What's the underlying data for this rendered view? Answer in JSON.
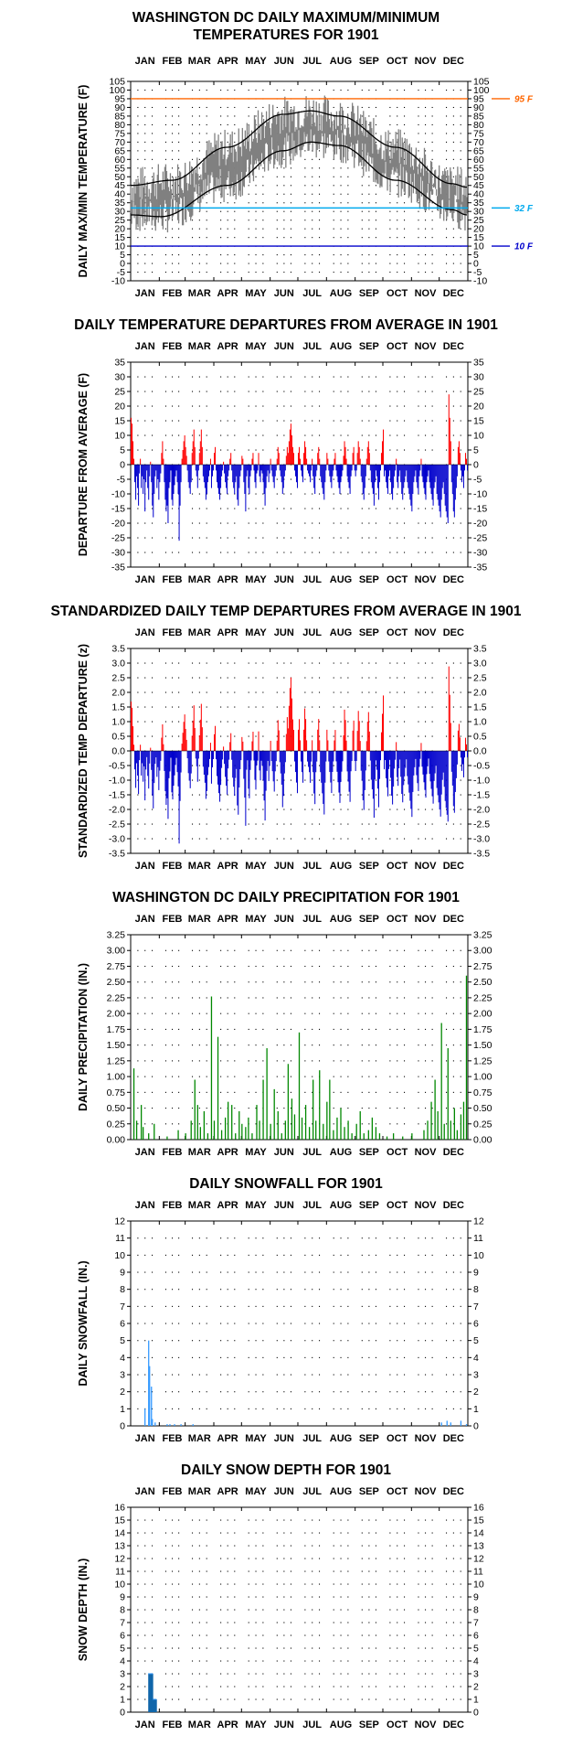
{
  "months": [
    "JAN",
    "FEB",
    "MAR",
    "APR",
    "MAY",
    "JUN",
    "JUL",
    "AUG",
    "SEP",
    "OCT",
    "NOV",
    "DEC"
  ],
  "chart_data": [
    {
      "type": "line",
      "title": "WASHINGTON DC DAILY MAXIMUM/MINIMUM",
      "subtitle": "TEMPERATURES FOR 1901",
      "ylabel": "DAILY MAX/MIN TEMPERATURE (F)",
      "xlabel": "",
      "ylim": [
        -10,
        105
      ],
      "yticks": [
        -10,
        -5,
        0,
        5,
        10,
        15,
        20,
        25,
        30,
        35,
        40,
        45,
        50,
        55,
        60,
        65,
        70,
        75,
        80,
        85,
        90,
        95,
        100,
        105
      ],
      "ref_lines": [
        {
          "value": 95,
          "label": "95 F",
          "color": "#ff6600"
        },
        {
          "value": 32,
          "label": "32 F",
          "color": "#00aaee"
        },
        {
          "value": 10,
          "label": "10 F",
          "color": "#0000cc"
        }
      ],
      "series": [],
      "normal_max_anchor": [
        [
          1,
          45
        ],
        [
          46,
          48
        ],
        [
          105,
          67
        ],
        [
          166,
          86
        ],
        [
          196,
          88
        ],
        [
          227,
          85
        ],
        [
          288,
          67
        ],
        [
          349,
          46
        ],
        [
          365,
          44
        ]
      ],
      "normal_min_anchor": [
        [
          1,
          28
        ],
        [
          34,
          27
        ],
        [
          105,
          45
        ],
        [
          166,
          65
        ],
        [
          196,
          70
        ],
        [
          227,
          68
        ],
        [
          288,
          48
        ],
        [
          349,
          31
        ],
        [
          365,
          28
        ]
      ],
      "daily_range_envelope": {
        "lows_start": 15,
        "highs_summer": 97,
        "max_daily_high": 99
      },
      "grid": "dotted"
    },
    {
      "type": "bar",
      "title": "DAILY TEMPERATURE DEPARTURES FROM AVERAGE IN 1901",
      "ylabel": "DEPARTURE FROM AVERAGE (F)",
      "xlabel": "",
      "ylim": [
        -35,
        35
      ],
      "yticks": [
        -35,
        -30,
        -25,
        -20,
        -15,
        -10,
        -5,
        0,
        5,
        10,
        15,
        20,
        25,
        30,
        35
      ],
      "positive_color": "#ff0000",
      "negative_color": "#0000cc",
      "values": [
        16,
        14,
        8,
        2,
        -6,
        -12,
        -4,
        -8,
        -14,
        -3,
        2,
        -8,
        -4,
        -10,
        -5,
        -16,
        -6,
        -2,
        -8,
        -12,
        -4,
        1,
        -6,
        -14,
        -18,
        -10,
        -4,
        -2,
        -8,
        -5,
        -12,
        -6,
        -3,
        4,
        8,
        2,
        -6,
        -12,
        -16,
        -14,
        -20,
        -8,
        -6,
        -2,
        -12,
        -14,
        -10,
        -7,
        -4,
        -2,
        -6,
        -10,
        -26,
        -14,
        -6,
        2,
        5,
        8,
        10,
        6,
        3,
        -2,
        -6,
        -8,
        -10,
        -6,
        4,
        8,
        12,
        6,
        -2,
        -4,
        -8,
        -2,
        4,
        8,
        12,
        6,
        -4,
        -6,
        -8,
        -12,
        -10,
        -6,
        -4,
        -2,
        2,
        -8,
        -4,
        -2,
        4,
        6,
        -2,
        -6,
        -8,
        -10,
        -12,
        -8,
        -4,
        -2,
        1,
        -3,
        -6,
        -8,
        -10,
        -4,
        -2,
        2,
        4,
        -2,
        -6,
        -8,
        -10,
        -6,
        -4,
        -12,
        -14,
        -8,
        -4,
        -2,
        3,
        2,
        -6,
        -10,
        -16,
        -4,
        -2,
        -8,
        -10,
        -4,
        -2,
        2,
        4,
        -2,
        -6,
        -8,
        -3,
        -2,
        4,
        -4,
        -6,
        -2,
        -3,
        -6,
        -10,
        -14,
        -8,
        -4,
        -2,
        -6,
        -3,
        2,
        -2,
        -4,
        -6,
        -8,
        -4,
        -2,
        2,
        6,
        4,
        -2,
        -4,
        -6,
        -10,
        -8,
        -4,
        -2,
        3,
        6,
        4,
        8,
        12,
        14,
        10,
        6,
        4,
        -2,
        -4,
        -6,
        -8,
        4,
        6,
        2,
        -2,
        -4,
        -6,
        4,
        8,
        6,
        2,
        -2,
        -3,
        -4,
        -6,
        -2,
        2,
        -4,
        -8,
        -10,
        -4,
        -2,
        4,
        6,
        2,
        -4,
        -6,
        -8,
        -10,
        -12,
        -6,
        -2,
        4,
        2,
        -2,
        -4,
        -6,
        -8,
        -4,
        -2,
        2,
        4,
        -2,
        -4,
        -6,
        -8,
        -10,
        -6,
        -4,
        -2,
        3,
        8,
        6,
        2,
        -4,
        -6,
        -8,
        -10,
        -4,
        -2,
        4,
        6,
        -2,
        -4,
        -2,
        4,
        8,
        6,
        2,
        -4,
        -6,
        -10,
        -12,
        -8,
        -4,
        2,
        6,
        8,
        4,
        -2,
        -6,
        -8,
        -10,
        -14,
        -6,
        -2,
        -4,
        -8,
        -12,
        -6,
        -2,
        4,
        8,
        12,
        -4,
        -2,
        -6,
        -8,
        -10,
        -4,
        -2,
        -6,
        -10,
        -12,
        -8,
        -4,
        -2,
        2,
        -6,
        -8,
        -4,
        -2,
        -6,
        -10,
        -12,
        -8,
        -6,
        -4,
        -2,
        -6,
        -8,
        -10,
        -12,
        -14,
        -16,
        -10,
        -6,
        -4,
        -2,
        -6,
        -8,
        -10,
        -4,
        -2,
        2,
        -4,
        -6,
        -8,
        -10,
        -12,
        -6,
        -4,
        -2,
        -6,
        -8,
        -10,
        -12,
        -14,
        -8,
        -6,
        -4,
        -10,
        -12,
        -14,
        -16,
        -18,
        -12,
        -8,
        -6,
        -10,
        -14,
        -16,
        -18,
        -20,
        24,
        16,
        8,
        -6,
        -10,
        -16,
        -18,
        -12,
        -8,
        -4,
        6,
        8,
        4,
        -2,
        -6,
        -4,
        -8,
        -2,
        4,
        2,
        -2
      ],
      "grid": "dotted"
    },
    {
      "type": "bar",
      "title": "STANDARDIZED DAILY TEMP DEPARTURES FROM AVERAGE IN 1901",
      "ylabel": "STANDARDIZED TEMP DEPARTURE (z)",
      "xlabel": "",
      "ylim": [
        -3.5,
        3.5
      ],
      "yticks": [
        -3.5,
        -3.0,
        -2.5,
        -2.0,
        -1.5,
        -1.0,
        -0.5,
        0.0,
        0.5,
        1.0,
        1.5,
        2.0,
        2.5,
        3.0,
        3.5
      ],
      "positive_color": "#ff0000",
      "negative_color": "#0000cc",
      "derived_from_previous": true,
      "divisor_winter": 9.5,
      "divisor_summer": 5.5,
      "grid": "dotted"
    },
    {
      "type": "bar",
      "title": "WASHINGTON DC DAILY PRECIPITATION FOR 1901",
      "ylabel": "DAILY PRECIPITATION (IN.)",
      "xlabel": "",
      "ylim": [
        0,
        3.25
      ],
      "yticks": [
        0.0,
        0.25,
        0.5,
        0.75,
        1.0,
        1.25,
        1.5,
        1.75,
        2.0,
        2.25,
        2.5,
        2.75,
        3.0,
        3.25
      ],
      "bar_color": "#008800",
      "events": [
        [
          4,
          1.13
        ],
        [
          7,
          0.3
        ],
        [
          12,
          0.55
        ],
        [
          14,
          0.2
        ],
        [
          20,
          0.1
        ],
        [
          26,
          0.25
        ],
        [
          40,
          0.05
        ],
        [
          52,
          0.15
        ],
        [
          60,
          0.1
        ],
        [
          66,
          0.3
        ],
        [
          70,
          0.95
        ],
        [
          73,
          0.55
        ],
        [
          76,
          0.2
        ],
        [
          80,
          0.45
        ],
        [
          84,
          0.1
        ],
        [
          88,
          2.27
        ],
        [
          91,
          0.3
        ],
        [
          95,
          1.63
        ],
        [
          99,
          0.15
        ],
        [
          103,
          0.35
        ],
        [
          106,
          0.6
        ],
        [
          110,
          0.55
        ],
        [
          114,
          0.1
        ],
        [
          118,
          0.45
        ],
        [
          121,
          0.25
        ],
        [
          125,
          0.2
        ],
        [
          128,
          0.35
        ],
        [
          132,
          0.1
        ],
        [
          137,
          0.55
        ],
        [
          140,
          0.3
        ],
        [
          144,
          0.95
        ],
        [
          148,
          1.45
        ],
        [
          152,
          0.25
        ],
        [
          156,
          0.8
        ],
        [
          160,
          0.45
        ],
        [
          164,
          0.1
        ],
        [
          168,
          0.3
        ],
        [
          171,
          1.2
        ],
        [
          175,
          0.65
        ],
        [
          178,
          0.4
        ],
        [
          183,
          1.7
        ],
        [
          186,
          0.35
        ],
        [
          190,
          0.55
        ],
        [
          194,
          0.2
        ],
        [
          198,
          0.95
        ],
        [
          201,
          0.3
        ],
        [
          205,
          1.1
        ],
        [
          209,
          0.25
        ],
        [
          213,
          0.6
        ],
        [
          216,
          0.95
        ],
        [
          220,
          0.15
        ],
        [
          224,
          0.35
        ],
        [
          228,
          0.5
        ],
        [
          232,
          0.2
        ],
        [
          236,
          0.3
        ],
        [
          240,
          0.1
        ],
        [
          245,
          0.25
        ],
        [
          249,
          0.45
        ],
        [
          253,
          0.1
        ],
        [
          258,
          0.15
        ],
        [
          262,
          0.35
        ],
        [
          266,
          0.2
        ],
        [
          270,
          0.1
        ],
        [
          278,
          0.05
        ],
        [
          285,
          0.1
        ],
        [
          295,
          0.05
        ],
        [
          305,
          0.1
        ],
        [
          318,
          0.15
        ],
        [
          322,
          0.3
        ],
        [
          326,
          0.6
        ],
        [
          330,
          0.95
        ],
        [
          333,
          0.45
        ],
        [
          337,
          1.85
        ],
        [
          340,
          0.25
        ],
        [
          344,
          1.45
        ],
        [
          347,
          0.3
        ],
        [
          351,
          0.5
        ],
        [
          354,
          0.15
        ],
        [
          358,
          0.4
        ],
        [
          361,
          0.6
        ],
        [
          364,
          2.6
        ]
      ],
      "grid": "dotted"
    },
    {
      "type": "bar",
      "title": "DAILY SNOWFALL FOR 1901",
      "ylabel": "DAILY SNOWFALL (IN.)",
      "xlabel": "",
      "ylim": [
        0,
        12
      ],
      "yticks": [
        0,
        1,
        2,
        3,
        4,
        5,
        6,
        7,
        8,
        9,
        10,
        11,
        12
      ],
      "bar_color": "#3399ff",
      "events": [
        [
          16,
          1.0
        ],
        [
          20,
          5.0
        ],
        [
          21,
          3.5
        ],
        [
          23,
          2.3
        ],
        [
          24,
          0.4
        ],
        [
          27,
          0.2
        ],
        [
          40,
          0.1
        ],
        [
          43,
          0.1
        ],
        [
          48,
          0.1
        ],
        [
          55,
          0.1
        ],
        [
          68,
          0.1
        ],
        [
          337,
          0.2
        ],
        [
          343,
          0.3
        ],
        [
          347,
          0.2
        ],
        [
          358,
          0.3
        ],
        [
          364,
          0.1
        ]
      ],
      "grid": "dotted"
    },
    {
      "type": "bar",
      "title": "DAILY SNOW DEPTH FOR 1901",
      "ylabel": "SNOW DEPTH (IN.)",
      "xlabel": "",
      "ylim": [
        0,
        16
      ],
      "yticks": [
        0,
        1,
        2,
        3,
        4,
        5,
        6,
        7,
        8,
        9,
        10,
        11,
        12,
        13,
        14,
        15,
        16
      ],
      "bar_color": "#3399ff",
      "fill_color": "#1166aa",
      "events": [
        [
          20,
          3
        ],
        [
          21,
          3
        ],
        [
          22,
          3
        ],
        [
          23,
          3
        ],
        [
          24,
          3
        ],
        [
          25,
          1
        ],
        [
          26,
          1
        ],
        [
          27,
          1
        ],
        [
          28,
          1
        ]
      ],
      "grid": "dotted"
    }
  ]
}
